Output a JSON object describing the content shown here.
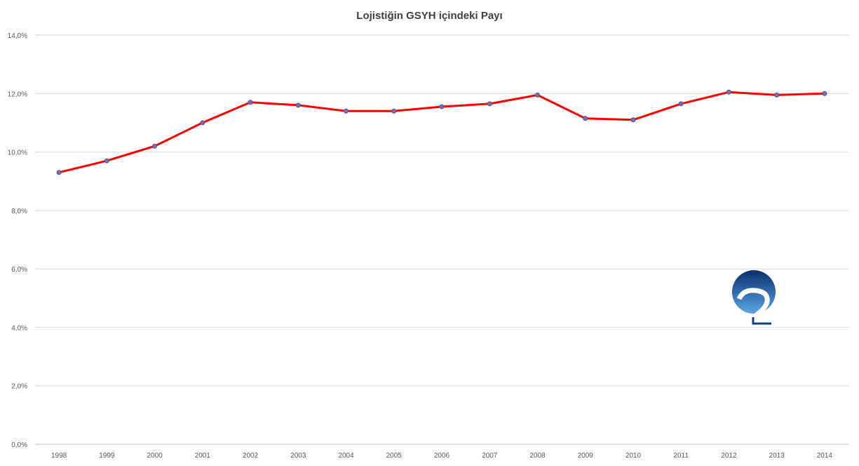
{
  "chart_data": {
    "type": "line",
    "title": "Lojistiğin GSYH içindeki Payı",
    "xlabel": "",
    "ylabel": "",
    "categories": [
      "1998",
      "1999",
      "2000",
      "2001",
      "2002",
      "2003",
      "2004",
      "2005",
      "2006",
      "2007",
      "2008",
      "2009",
      "2010",
      "2011",
      "2012",
      "2013",
      "2014"
    ],
    "series": [
      {
        "values": [
          9.3,
          9.7,
          10.2,
          11.0,
          11.7,
          11.6,
          11.4,
          11.4,
          11.55,
          11.65,
          11.95,
          11.15,
          11.1,
          11.65,
          12.05,
          11.95,
          12.0
        ]
      }
    ],
    "ylim": [
      0,
      14
    ],
    "yticks": [
      "0,0%",
      "2,0%",
      "4,0%",
      "6,0%",
      "8,0%",
      "10,0%",
      "12,0%",
      "14,0%"
    ],
    "ytick_values": [
      0,
      2,
      4,
      6,
      8,
      10,
      12,
      14
    ],
    "grid": true,
    "legend": "none",
    "line_color": "#ff0000",
    "marker_color": "#7f6fa8",
    "marker_stroke": "#5b4e8c",
    "logo": {
      "name": "circle-2-logo",
      "color_top": "#0a2e6e",
      "color_bottom": "#5aa6e6"
    }
  }
}
